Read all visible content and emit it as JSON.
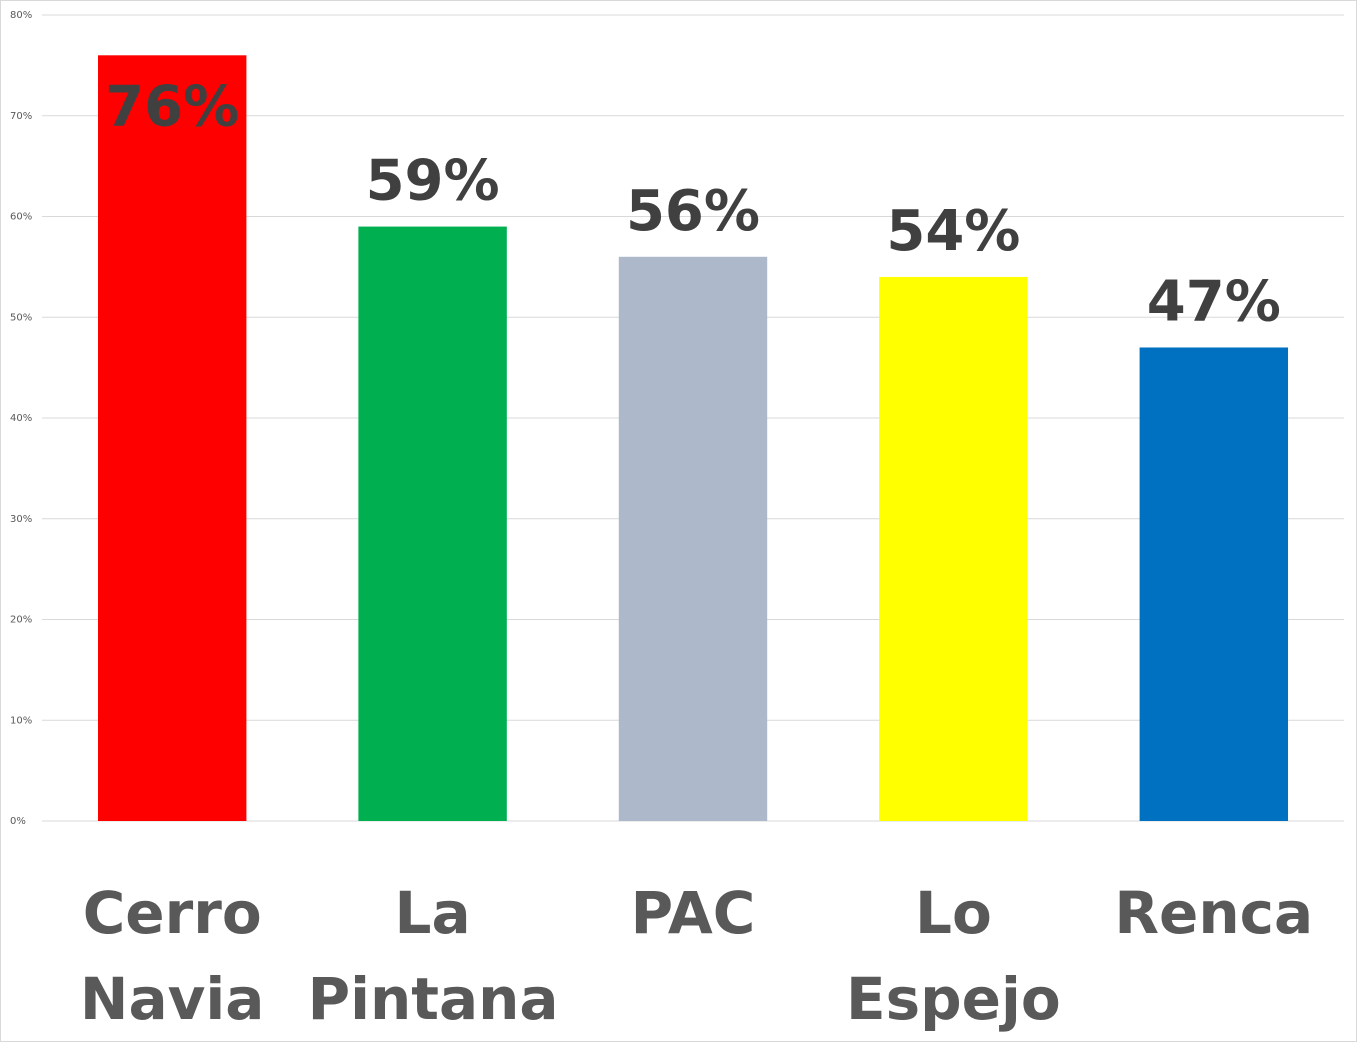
{
  "chart_data": {
    "type": "bar",
    "categories": [
      "Cerro Navia",
      "La Pintana",
      "PAC",
      "Lo Espejo",
      "Renca"
    ],
    "values": [
      76,
      59,
      56,
      54,
      47
    ],
    "value_labels": [
      "76%",
      "59%",
      "56%",
      "54%",
      "47%"
    ],
    "colors": [
      "#ff0000",
      "#00b050",
      "#adb9ca",
      "#ffff00",
      "#0070c0"
    ],
    "ylim": [
      0,
      80
    ],
    "yticks": [
      {
        "value": 0,
        "label": "0%"
      },
      {
        "value": 10,
        "label": "10%"
      },
      {
        "value": 20,
        "label": "20%"
      },
      {
        "value": 30,
        "label": "30%"
      },
      {
        "value": 40,
        "label": "40%"
      },
      {
        "value": 50,
        "label": "50%"
      },
      {
        "value": 60,
        "label": "60%"
      },
      {
        "value": 70,
        "label": "70%"
      },
      {
        "value": 80,
        "label": "80%"
      }
    ],
    "grid": true
  }
}
